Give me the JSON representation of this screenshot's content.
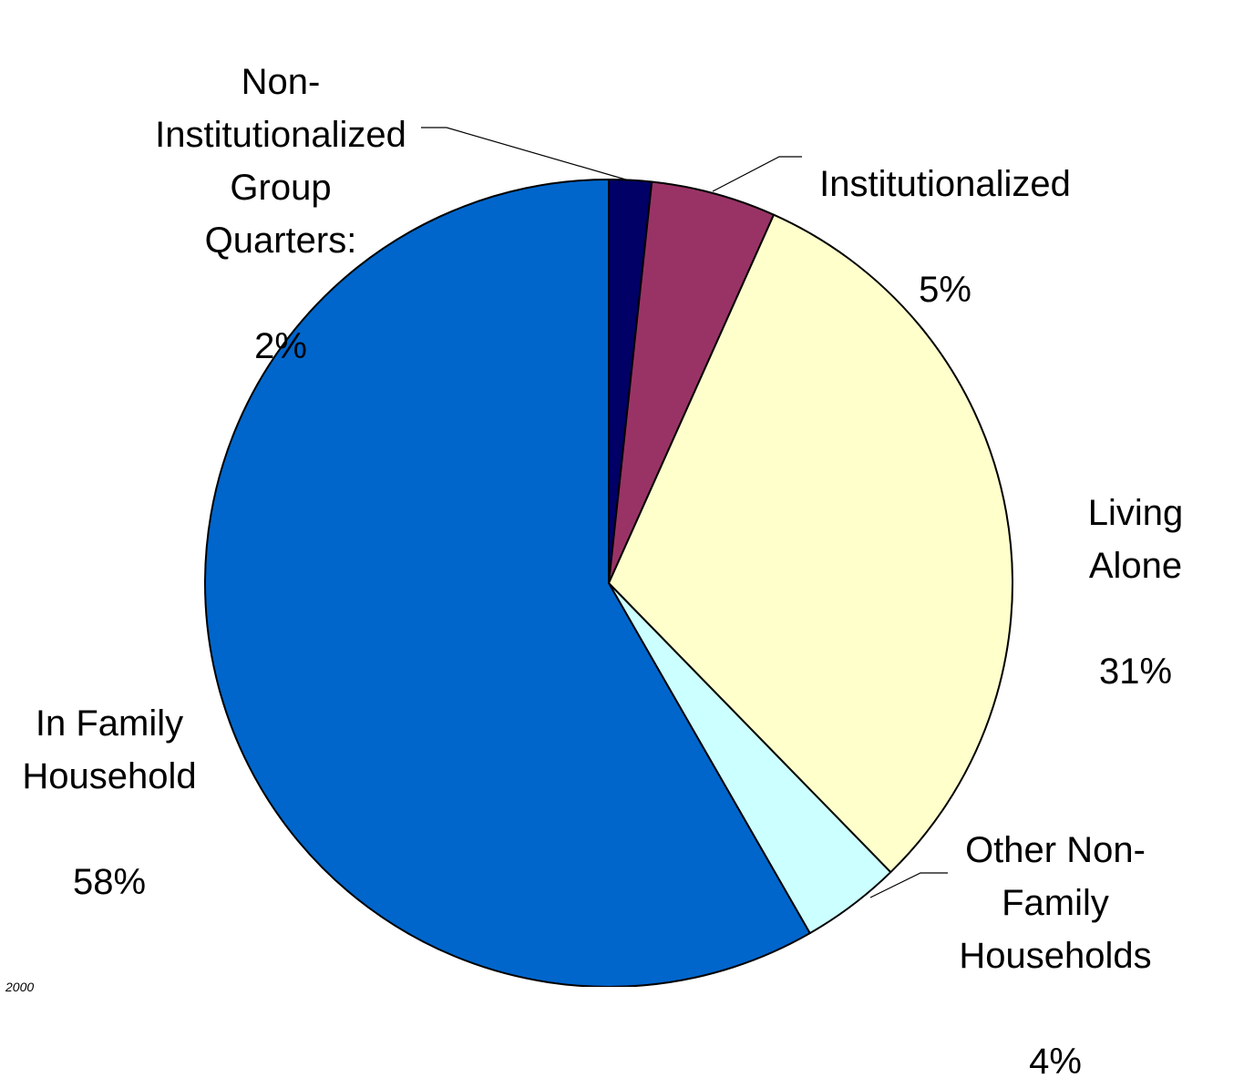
{
  "chart_data": {
    "type": "pie",
    "title": "",
    "start_angle_deg": 0,
    "direction": "clockwise",
    "outline_color": "#000000",
    "slices": [
      {
        "label": "Non-\nInstitutionalized\nGroup\nQuarters:",
        "value_label": "2%",
        "value": 1.7,
        "color": "#000066"
      },
      {
        "label": "Institutionalized",
        "value_label": "5%",
        "value": 5,
        "color": "#993366"
      },
      {
        "label": "Living Alone",
        "value_label": "31%",
        "value": 31,
        "color": "#ffffcc"
      },
      {
        "label": "Other Non-\nFamily\nHouseholds",
        "value_label": "4%",
        "value": 4,
        "color": "#ccffff"
      },
      {
        "label": "In Family\nHousehold",
        "value_label": "58%",
        "value": 58.3,
        "color": "#0066cc"
      }
    ]
  },
  "footnote": "2000"
}
